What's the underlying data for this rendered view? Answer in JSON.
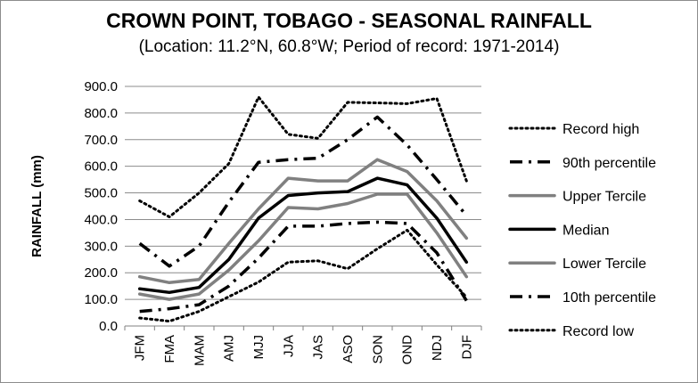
{
  "chart_data": {
    "type": "line",
    "title": "CROWN POINT, TOBAGO - SEASONAL RAINFALL",
    "subtitle": "(Location: 11.2°N, 60.8°W; Period of record: 1971-2014)",
    "xlabel": "",
    "ylabel": "RAINFALL (mm)",
    "ylim": [
      0,
      900
    ],
    "yticks": [
      "0.0",
      "100.0",
      "200.0",
      "300.0",
      "400.0",
      "500.0",
      "600.0",
      "700.0",
      "800.0",
      "900.0"
    ],
    "grid": true,
    "legend_position": "right",
    "categories": [
      "JFM",
      "FMA",
      "MAM",
      "AMJ",
      "MJJ",
      "JJA",
      "JAS",
      "ASO",
      "SON",
      "OND",
      "NDJ",
      "DJF"
    ],
    "series": [
      {
        "name": "Record high",
        "color": "#000000",
        "style": "dotted",
        "values": [
          470,
          410,
          500,
          610,
          860,
          720,
          705,
          840,
          838,
          835,
          855,
          545
        ]
      },
      {
        "name": "90th percentile",
        "color": "#000000",
        "style": "dashdot",
        "values": [
          310,
          225,
          300,
          465,
          615,
          625,
          630,
          700,
          785,
          680,
          550,
          415
        ]
      },
      {
        "name": "Upper Tercile",
        "color": "#808080",
        "style": "solid",
        "values": [
          185,
          163,
          175,
          310,
          440,
          555,
          545,
          545,
          625,
          580,
          470,
          330
        ]
      },
      {
        "name": "Median",
        "color": "#000000",
        "style": "solid",
        "values": [
          140,
          126,
          145,
          250,
          405,
          490,
          500,
          505,
          555,
          530,
          405,
          240
        ]
      },
      {
        "name": "Lower Tercile",
        "color": "#808080",
        "style": "solid",
        "values": [
          120,
          100,
          120,
          210,
          320,
          445,
          440,
          460,
          495,
          495,
          350,
          185
        ]
      },
      {
        "name": "10th percentile",
        "color": "#000000",
        "style": "dashdot",
        "values": [
          55,
          65,
          80,
          150,
          255,
          375,
          375,
          385,
          390,
          385,
          275,
          95
        ]
      },
      {
        "name": "Record low",
        "color": "#000000",
        "style": "dotted",
        "values": [
          30,
          18,
          55,
          110,
          165,
          240,
          245,
          215,
          290,
          360,
          230,
          108
        ]
      }
    ]
  }
}
